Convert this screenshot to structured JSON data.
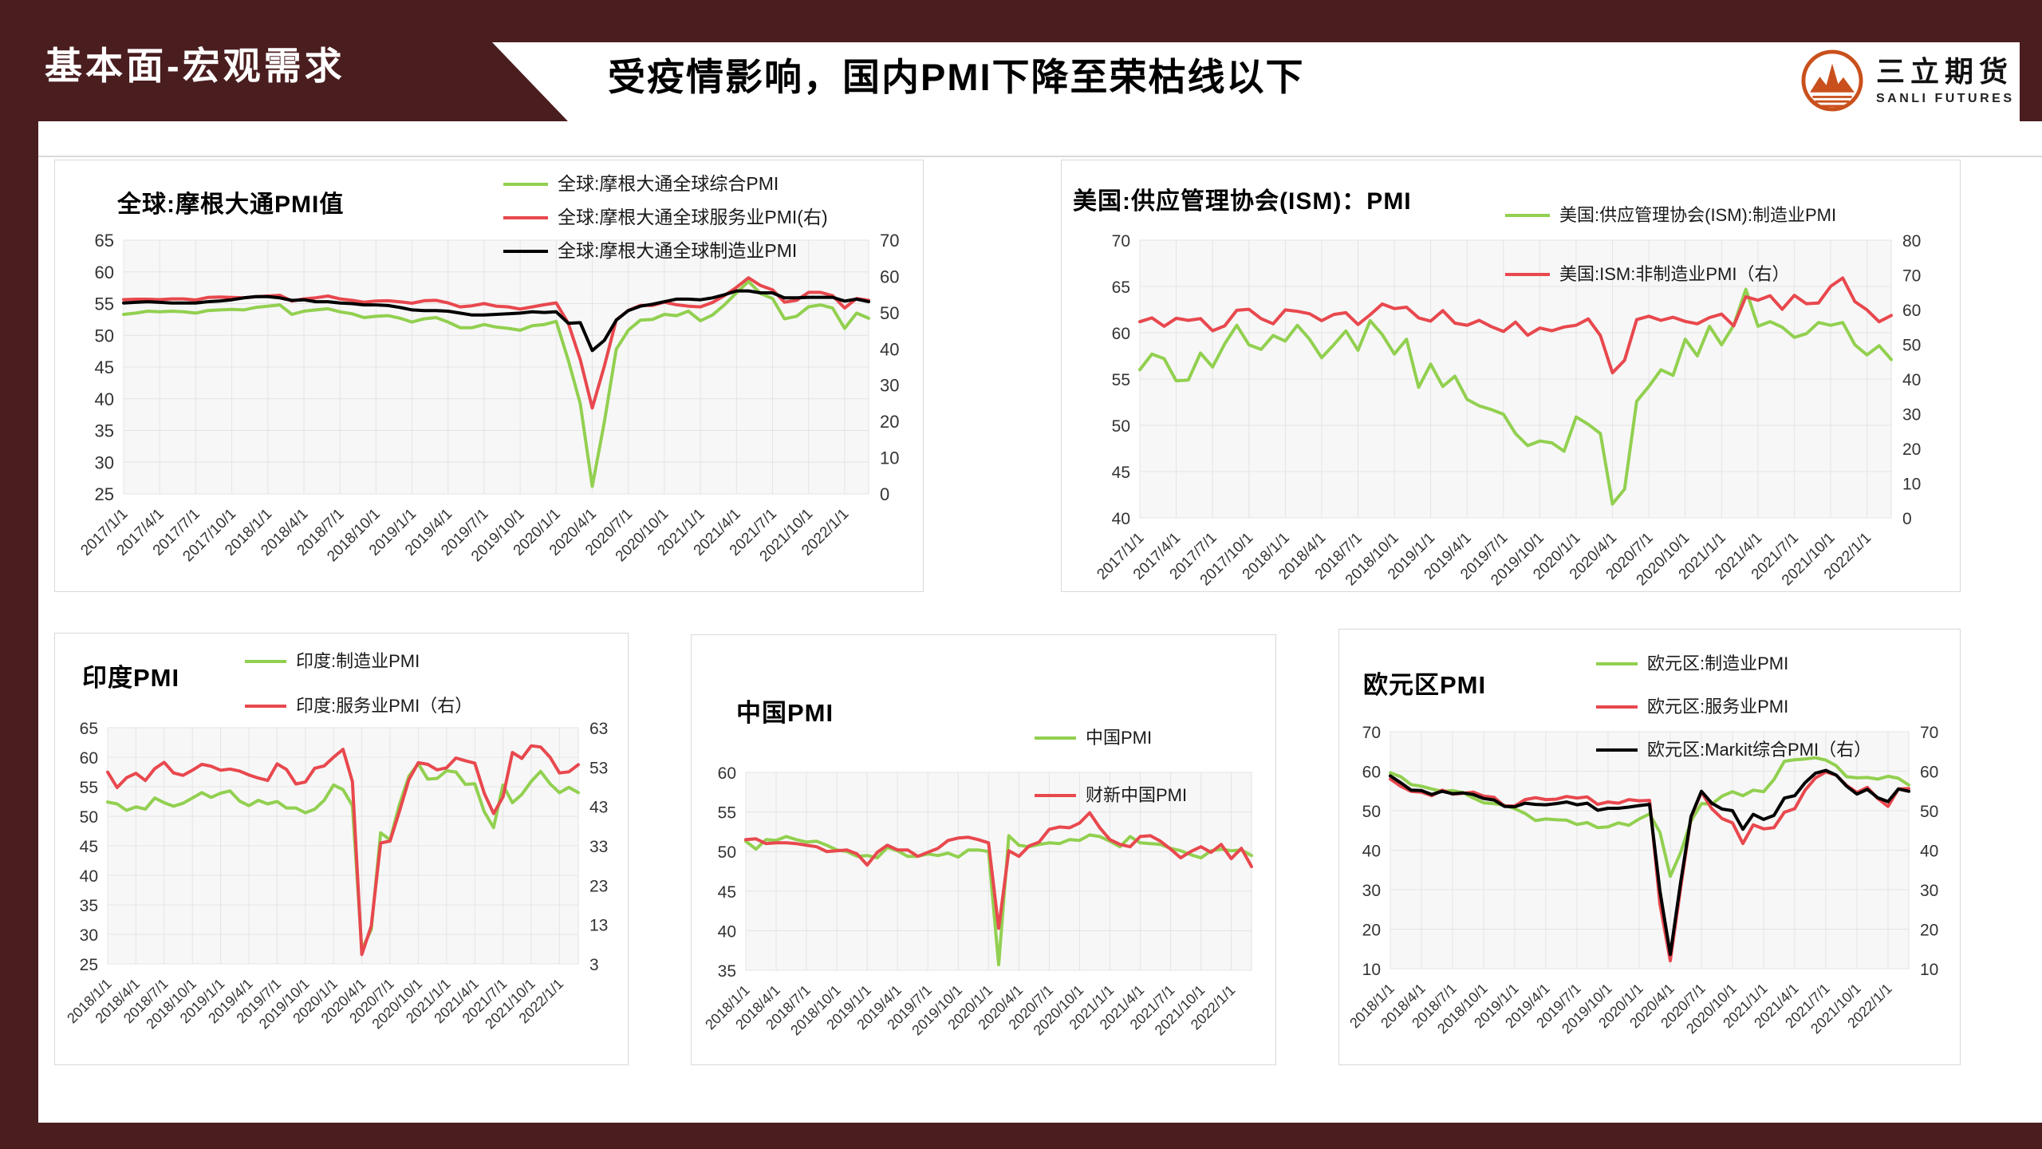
{
  "page": {
    "accent_color": "#4a1d1f",
    "divider_color": "#d9d9d9",
    "plot_bg_color": "#f7f7f7",
    "grid_color": "#e4e4e4",
    "tick_color": "#333333"
  },
  "header": {
    "section_label": "基本面-宏观需求",
    "title": "受疫情影响，国内PMI下降至荣枯线以下",
    "logo": {
      "cn": "三立期货",
      "en": "SANLI FUTURES",
      "color": "#c9501c"
    }
  },
  "chart_data": [
    {
      "id": "global-jpm-pmi",
      "type": "line",
      "title": "全球:摩根大通PMI值",
      "x_tick_labels": [
        "2017/1/1",
        "2017/4/1",
        "2017/7/1",
        "2017/10/1",
        "2018/1/1",
        "2018/4/1",
        "2018/7/1",
        "2018/10/1",
        "2019/1/1",
        "2019/4/1",
        "2019/7/1",
        "2019/10/1",
        "2020/1/1",
        "2020/4/1",
        "2020/7/1",
        "2020/10/1",
        "2021/1/1",
        "2021/4/1",
        "2021/7/1",
        "2021/10/1",
        "2022/1/1"
      ],
      "points_per_tick": 3,
      "left_axis": {
        "min": 25,
        "max": 65,
        "step": 5
      },
      "right_axis": {
        "min": 0,
        "max": 70,
        "step": 10
      },
      "series": [
        {
          "name": "全球:摩根大通全球综合PMI",
          "color": "#92d050",
          "axis": "left",
          "values": [
            53.3,
            53.5,
            53.8,
            53.7,
            53.8,
            53.7,
            53.5,
            53.9,
            54.0,
            54.1,
            54.0,
            54.4,
            54.6,
            54.8,
            53.3,
            53.8,
            54.0,
            54.2,
            53.7,
            53.4,
            52.8,
            53.0,
            53.1,
            52.7,
            52.1,
            52.6,
            52.8,
            52.1,
            51.2,
            51.2,
            51.7,
            51.3,
            51.1,
            50.8,
            51.5,
            51.7,
            52.2,
            46.1,
            39.2,
            26.2,
            36.3,
            47.8,
            50.8,
            52.4,
            52.5,
            53.3,
            53.1,
            53.8,
            52.3,
            53.2,
            54.8,
            56.7,
            58.5,
            56.6,
            55.8,
            52.6,
            53.0,
            54.5,
            54.8,
            54.3,
            51.1,
            53.5,
            52.7
          ]
        },
        {
          "name": "全球:摩根大通全球服务业PMI(右)",
          "color": "#e8484e",
          "axis": "right",
          "values": [
            53.6,
            53.7,
            53.7,
            53.6,
            53.8,
            53.8,
            53.5,
            54.2,
            54.3,
            54.2,
            54.1,
            54.4,
            54.6,
            54.8,
            53.2,
            53.8,
            54.1,
            54.6,
            53.8,
            53.4,
            52.9,
            53.2,
            53.3,
            53.0,
            52.6,
            53.3,
            53.4,
            52.7,
            51.6,
            51.9,
            52.5,
            51.8,
            51.6,
            51.0,
            51.6,
            52.2,
            52.7,
            47.1,
            37.0,
            23.7,
            35.2,
            48.0,
            50.6,
            52.0,
            52.0,
            52.9,
            52.2,
            51.8,
            51.6,
            52.8,
            54.7,
            57.0,
            59.6,
            57.5,
            56.3,
            52.9,
            53.4,
            55.6,
            55.6,
            54.7,
            51.3,
            53.9,
            53.4
          ]
        },
        {
          "name": "全球:摩根大通全球制造业PMI",
          "color": "#000000",
          "axis": "left",
          "values": [
            55.1,
            55.2,
            55.3,
            55.2,
            55.1,
            55.1,
            55.1,
            55.3,
            55.4,
            55.6,
            55.9,
            56.1,
            56.1,
            55.9,
            55.5,
            55.6,
            55.3,
            55.3,
            55.1,
            55.0,
            54.8,
            54.8,
            54.7,
            54.4,
            54.0,
            53.9,
            53.9,
            53.8,
            53.5,
            53.2,
            53.2,
            53.3,
            53.4,
            53.5,
            53.7,
            53.6,
            53.7,
            51.9,
            52.0,
            47.6,
            49.2,
            52.4,
            53.9,
            54.6,
            54.9,
            55.3,
            55.7,
            55.7,
            55.6,
            55.9,
            56.4,
            57.0,
            57.0,
            56.7,
            56.7,
            55.9,
            55.9,
            56.0,
            56.0,
            56.0,
            55.4,
            55.7,
            55.3
          ]
        }
      ]
    },
    {
      "id": "us-ism-pmi",
      "type": "line",
      "title": "美国:供应管理协会(ISM)：PMI",
      "x_tick_labels": [
        "2017/1/1",
        "2017/4/1",
        "2017/7/1",
        "2017/10/1",
        "2018/1/1",
        "2018/4/1",
        "2018/7/1",
        "2018/10/1",
        "2019/1/1",
        "2019/4/1",
        "2019/7/1",
        "2019/10/1",
        "2020/1/1",
        "2020/4/1",
        "2020/7/1",
        "2020/10/1",
        "2021/1/1",
        "2021/4/1",
        "2021/7/1",
        "2021/10/1",
        "2022/1/1"
      ],
      "points_per_tick": 3,
      "left_axis": {
        "min": 40,
        "max": 70,
        "step": 5
      },
      "right_axis": {
        "min": 0,
        "max": 80,
        "step": 10
      },
      "series": [
        {
          "name": "美国:供应管理协会(ISM):制造业PMI",
          "color": "#92d050",
          "axis": "left",
          "values": [
            56.0,
            57.7,
            57.2,
            54.8,
            54.9,
            57.8,
            56.3,
            58.8,
            60.8,
            58.7,
            58.2,
            59.7,
            59.1,
            60.8,
            59.3,
            57.3,
            58.7,
            60.2,
            58.1,
            61.3,
            59.8,
            57.7,
            59.3,
            54.1,
            56.6,
            54.2,
            55.3,
            52.8,
            52.1,
            51.7,
            51.2,
            49.1,
            47.8,
            48.3,
            48.1,
            47.2,
            50.9,
            50.1,
            49.1,
            41.5,
            43.1,
            52.6,
            54.2,
            56.0,
            55.4,
            59.3,
            57.5,
            60.7,
            58.7,
            60.8,
            64.7,
            60.7,
            61.2,
            60.6,
            59.5,
            59.9,
            61.1,
            60.8,
            61.1,
            58.7,
            57.6,
            58.6,
            57.1
          ]
        },
        {
          "name": "美国:ISM:非制造业PMI（右）",
          "color": "#e8484e",
          "axis": "right",
          "values": [
            56.5,
            57.6,
            55.2,
            57.5,
            56.9,
            57.4,
            53.9,
            55.3,
            59.8,
            60.1,
            57.4,
            55.9,
            59.9,
            59.5,
            58.8,
            56.8,
            58.6,
            59.1,
            55.7,
            58.5,
            61.6,
            60.3,
            60.7,
            57.6,
            56.7,
            59.7,
            56.1,
            55.5,
            56.9,
            55.1,
            53.7,
            56.4,
            52.6,
            54.7,
            53.9,
            55.0,
            55.5,
            57.3,
            52.5,
            41.8,
            45.4,
            57.1,
            58.1,
            56.9,
            57.8,
            56.6,
            55.9,
            57.7,
            58.7,
            55.3,
            63.7,
            62.7,
            64.0,
            60.1,
            64.1,
            61.7,
            61.9,
            66.7,
            69.1,
            62.3,
            59.9,
            56.5,
            58.3
          ]
        }
      ]
    },
    {
      "id": "india-pmi",
      "type": "line",
      "title": "印度PMI",
      "x_tick_labels": [
        "2018/1/1",
        "2018/4/1",
        "2018/7/1",
        "2018/10/1",
        "2019/1/1",
        "2019/4/1",
        "2019/7/1",
        "2019/10/1",
        "2020/1/1",
        "2020/4/1",
        "2020/7/1",
        "2020/10/1",
        "2021/1/1",
        "2021/4/1",
        "2021/7/1",
        "2021/10/1",
        "2022/1/1"
      ],
      "points_per_tick": 3,
      "left_axis": {
        "min": 25,
        "max": 65,
        "step": 5
      },
      "right_axis": {
        "min": 3,
        "max": 63,
        "step": 10
      },
      "series": [
        {
          "name": "印度:制造业PMI",
          "color": "#92d050",
          "axis": "left",
          "values": [
            52.4,
            52.1,
            51.0,
            51.6,
            51.2,
            53.1,
            52.3,
            51.7,
            52.2,
            53.1,
            54.0,
            53.2,
            53.9,
            54.3,
            52.6,
            51.8,
            52.7,
            52.1,
            52.5,
            51.4,
            51.4,
            50.6,
            51.2,
            52.7,
            55.3,
            54.5,
            51.8,
            27.4,
            30.8,
            47.2,
            46.0,
            52.0,
            56.8,
            58.9,
            56.3,
            56.4,
            57.7,
            57.5,
            55.4,
            55.5,
            50.8,
            48.1,
            55.3,
            52.3,
            53.7,
            55.9,
            57.6,
            55.5,
            54.0,
            54.9,
            54.0
          ]
        },
        {
          "name": "印度:服务业PMI（右）",
          "color": "#e8484e",
          "axis": "right",
          "values": [
            51.7,
            47.8,
            50.3,
            51.4,
            49.6,
            52.6,
            54.2,
            51.5,
            50.9,
            52.2,
            53.7,
            53.2,
            52.2,
            52.5,
            52.0,
            51.0,
            50.2,
            49.6,
            53.8,
            52.4,
            48.7,
            49.2,
            52.7,
            53.3,
            55.5,
            57.5,
            49.3,
            5.4,
            12.6,
            33.7,
            34.2,
            41.8,
            49.8,
            54.1,
            53.7,
            52.3,
            52.8,
            55.3,
            54.6,
            54.0,
            46.4,
            41.2,
            45.4,
            56.7,
            55.2,
            58.4,
            58.1,
            55.5,
            51.5,
            51.8,
            53.6
          ]
        }
      ]
    },
    {
      "id": "china-pmi",
      "type": "line",
      "title": "中国PMI",
      "x_tick_labels": [
        "2018/1/1",
        "2018/4/1",
        "2018/7/1",
        "2018/10/1",
        "2019/1/1",
        "2019/4/1",
        "2019/7/1",
        "2019/10/1",
        "2020/1/1",
        "2020/4/1",
        "2020/7/1",
        "2020/10/1",
        "2021/1/1",
        "2021/4/1",
        "2021/7/1",
        "2021/10/1",
        "2022/1/1"
      ],
      "points_per_tick": 3,
      "left_axis": {
        "min": 35,
        "max": 60,
        "step": 5
      },
      "right_axis": null,
      "series": [
        {
          "name": "中国PMI",
          "color": "#92d050",
          "axis": "left",
          "values": [
            51.3,
            50.3,
            51.5,
            51.4,
            51.9,
            51.5,
            51.2,
            51.3,
            50.8,
            50.2,
            50.0,
            49.4,
            49.5,
            49.2,
            50.5,
            50.1,
            49.4,
            49.4,
            49.7,
            49.5,
            49.8,
            49.3,
            50.2,
            50.2,
            50.0,
            35.7,
            52.0,
            50.8,
            50.6,
            50.9,
            51.1,
            51.0,
            51.5,
            51.4,
            52.1,
            51.9,
            51.3,
            50.6,
            51.9,
            51.1,
            51.0,
            50.9,
            50.4,
            50.1,
            49.6,
            49.2,
            50.1,
            50.3,
            50.1,
            50.2,
            49.5
          ]
        },
        {
          "name": "财新中国PMI",
          "color": "#e8484e",
          "axis": "left",
          "values": [
            51.5,
            51.6,
            51.0,
            51.1,
            51.1,
            51.0,
            50.8,
            50.6,
            50.0,
            50.1,
            50.2,
            49.7,
            48.3,
            49.9,
            50.8,
            50.2,
            50.2,
            49.4,
            49.9,
            50.4,
            51.4,
            51.7,
            51.8,
            51.5,
            51.1,
            40.3,
            50.1,
            49.4,
            50.7,
            51.2,
            52.8,
            53.1,
            53.0,
            53.6,
            54.9,
            53.0,
            51.5,
            50.9,
            50.6,
            51.9,
            52.0,
            51.3,
            50.3,
            49.2,
            50.0,
            50.6,
            49.9,
            50.9,
            49.1,
            50.4,
            48.1
          ]
        }
      ]
    },
    {
      "id": "eurozone-pmi",
      "type": "line",
      "title": "欧元区PMI",
      "x_tick_labels": [
        "2018/1/1",
        "2018/4/1",
        "2018/7/1",
        "2018/10/1",
        "2019/1/1",
        "2019/4/1",
        "2019/7/1",
        "2019/10/1",
        "2020/1/1",
        "2020/4/1",
        "2020/7/1",
        "2020/10/1",
        "2021/1/1",
        "2021/4/1",
        "2021/7/1",
        "2021/10/1",
        "2022/1/1"
      ],
      "points_per_tick": 3,
      "left_axis": {
        "min": 10,
        "max": 70,
        "step": 10
      },
      "right_axis": {
        "min": 10,
        "max": 70,
        "step": 10
      },
      "series": [
        {
          "name": "欧元区:制造业PMI",
          "color": "#92d050",
          "axis": "left",
          "values": [
            59.6,
            58.6,
            56.6,
            56.2,
            55.5,
            54.9,
            55.1,
            54.6,
            53.2,
            52.0,
            51.8,
            51.4,
            50.5,
            49.3,
            47.5,
            47.9,
            47.7,
            47.6,
            46.5,
            47.0,
            45.7,
            45.9,
            46.9,
            46.3,
            47.9,
            49.2,
            44.5,
            33.4,
            39.4,
            47.4,
            51.8,
            51.7,
            53.7,
            54.8,
            53.8,
            55.2,
            54.8,
            57.9,
            62.5,
            62.9,
            63.1,
            63.4,
            62.8,
            61.4,
            58.6,
            58.3,
            58.4,
            58.0,
            58.7,
            58.2,
            56.5
          ]
        },
        {
          "name": "欧元区:服务业PMI",
          "color": "#e8484e",
          "axis": "left",
          "values": [
            58.0,
            56.2,
            54.9,
            54.7,
            53.8,
            55.2,
            54.2,
            54.4,
            54.7,
            53.7,
            53.4,
            51.2,
            51.2,
            52.8,
            53.3,
            52.8,
            52.9,
            53.6,
            53.2,
            53.5,
            51.6,
            52.2,
            51.9,
            52.8,
            52.5,
            52.6,
            26.4,
            12.0,
            30.5,
            48.3,
            54.7,
            50.5,
            48.0,
            46.9,
            41.7,
            46.4,
            45.4,
            45.7,
            49.6,
            50.5,
            55.2,
            58.3,
            59.8,
            59.0,
            56.4,
            54.6,
            55.9,
            53.1,
            51.1,
            55.5,
            55.6
          ]
        },
        {
          "name": "欧元区:Markit综合PMI（右）",
          "color": "#000000",
          "axis": "right",
          "values": [
            58.8,
            57.1,
            55.2,
            55.1,
            54.1,
            54.9,
            54.3,
            54.5,
            54.1,
            53.1,
            52.7,
            51.1,
            51.0,
            51.9,
            51.6,
            51.5,
            51.8,
            52.2,
            51.5,
            51.9,
            50.1,
            50.6,
            50.6,
            50.9,
            51.3,
            51.6,
            29.7,
            13.6,
            31.9,
            48.5,
            54.9,
            51.9,
            50.4,
            50.0,
            45.3,
            49.1,
            47.8,
            48.8,
            53.2,
            53.8,
            57.1,
            59.5,
            60.2,
            59.0,
            56.2,
            54.2,
            55.4,
            53.3,
            52.3,
            55.5,
            54.9
          ]
        }
      ]
    }
  ]
}
